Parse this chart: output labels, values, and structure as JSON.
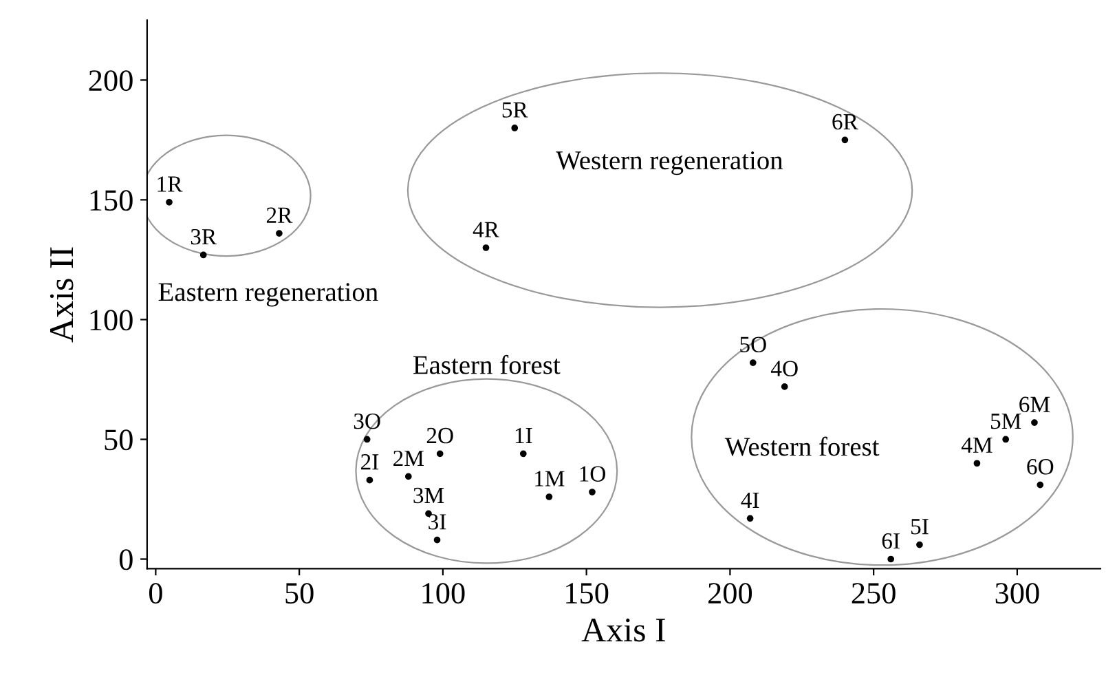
{
  "chart_data": {
    "type": "scatter",
    "xlabel": "Axis I",
    "ylabel": "Axis II",
    "marker": "circle",
    "grid": false,
    "legend": false,
    "xlim": [
      -3,
      329
    ],
    "ylim": [
      -4,
      225
    ],
    "xticks": [
      0,
      50,
      100,
      150,
      200,
      250,
      300
    ],
    "yticks": [
      0,
      50,
      100,
      150,
      200
    ],
    "series": [
      {
        "name": "1R",
        "color": "#000000",
        "x": [
          4.7
        ],
        "values": [
          149
        ]
      },
      {
        "name": "2R",
        "color": "#000000",
        "x": [
          43
        ],
        "values": [
          136
        ]
      },
      {
        "name": "3R",
        "color": "#000000",
        "x": [
          16.6
        ],
        "values": [
          127
        ]
      },
      {
        "name": "4R",
        "color": "#000000",
        "x": [
          115
        ],
        "values": [
          130
        ]
      },
      {
        "name": "5R",
        "color": "#000000",
        "x": [
          125
        ],
        "values": [
          180
        ]
      },
      {
        "name": "6R",
        "color": "#000000",
        "x": [
          240
        ],
        "values": [
          175
        ]
      },
      {
        "name": "3O",
        "color": "#000000",
        "x": [
          73.6
        ],
        "values": [
          50
        ]
      },
      {
        "name": "2O",
        "color": "#000000",
        "x": [
          99
        ],
        "values": [
          44
        ]
      },
      {
        "name": "1I",
        "color": "#000000",
        "x": [
          128
        ],
        "values": [
          44
        ]
      },
      {
        "name": "2I",
        "color": "#000000",
        "x": [
          74.5
        ],
        "values": [
          33
        ]
      },
      {
        "name": "2M",
        "color": "#000000",
        "x": [
          88
        ],
        "values": [
          34.5
        ]
      },
      {
        "name": "3M",
        "color": "#000000",
        "x": [
          95
        ],
        "values": [
          19
        ]
      },
      {
        "name": "3I",
        "color": "#000000",
        "x": [
          98
        ],
        "values": [
          8
        ]
      },
      {
        "name": "1M",
        "color": "#000000",
        "x": [
          137
        ],
        "values": [
          26
        ]
      },
      {
        "name": "1O",
        "color": "#000000",
        "x": [
          152
        ],
        "values": [
          28
        ]
      },
      {
        "name": "5O",
        "color": "#000000",
        "x": [
          208
        ],
        "values": [
          82
        ]
      },
      {
        "name": "4O",
        "color": "#000000",
        "x": [
          219
        ],
        "values": [
          72
        ]
      },
      {
        "name": "4M",
        "color": "#000000",
        "x": [
          286
        ],
        "values": [
          40
        ]
      },
      {
        "name": "5M",
        "color": "#000000",
        "x": [
          296
        ],
        "values": [
          50
        ]
      },
      {
        "name": "6M",
        "color": "#000000",
        "x": [
          306
        ],
        "values": [
          57
        ]
      },
      {
        "name": "6O",
        "color": "#000000",
        "x": [
          308
        ],
        "values": [
          31
        ]
      },
      {
        "name": "4I",
        "color": "#000000",
        "x": [
          207
        ],
        "values": [
          17
        ]
      },
      {
        "name": "5I",
        "color": "#000000",
        "x": [
          266
        ],
        "values": [
          6
        ]
      },
      {
        "name": "6I",
        "color": "#000000",
        "x": [
          256
        ],
        "values": [
          0
        ]
      }
    ],
    "annotations": [
      "Eastern regeneration",
      "Western regeneration",
      "Eastern forest",
      "Western forest"
    ]
  }
}
